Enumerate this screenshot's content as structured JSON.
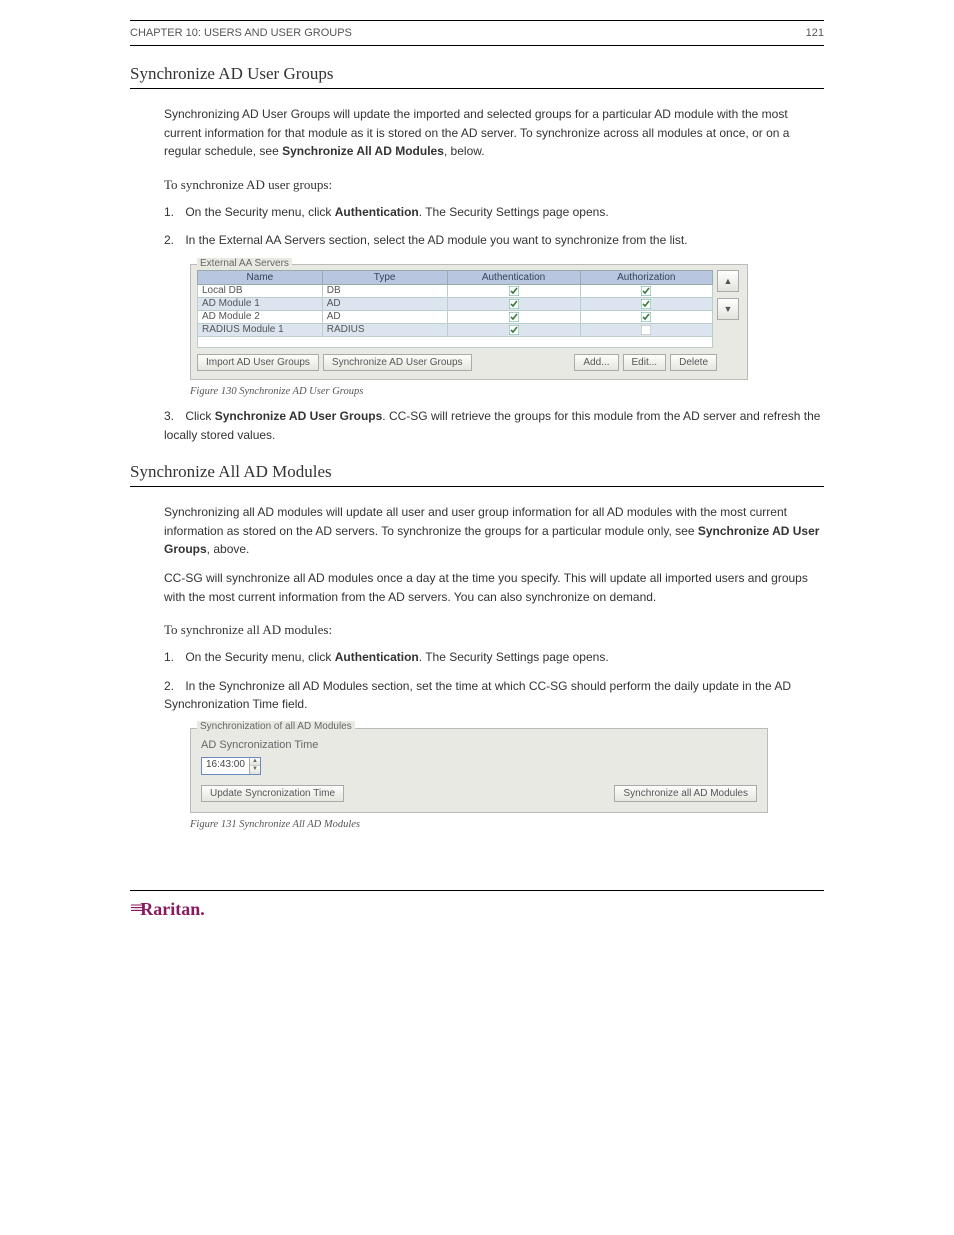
{
  "header": {
    "section": "CHAPTER 10: USERS AND USER GROUPS",
    "page_top": "121"
  },
  "sections": {
    "sync_ug_title": "Synchronize AD User Groups",
    "sync_all_title": "Synchronize All AD Modules"
  },
  "paragraphs": {
    "sync_ug_p1": "Synchronizing AD User Groups will update the imported and selected groups for a particular AD module with the most current information for that module as it is stored on the AD server. To synchronize across all modules at once, or on a regular schedule, see",
    "sync_ug_link": "Synchronize All AD Modules",
    "sync_ug_p1_tail": ", below.",
    "sync_ug_subhead": "To synchronize AD user groups:",
    "sync_ug_step1a": "On the Security menu, click",
    "sync_ug_step1b": "Authentication",
    "sync_ug_step1c": ". The Security Settings page opens.",
    "sync_ug_step2": "In the External AA Servers section, select the AD module you want to synchronize from the list.",
    "sync_ug_step3a": "Click",
    "sync_ug_step3b": "Synchronize AD User Groups",
    "sync_ug_step3c": ". CC-SG will retrieve the groups for this module from the AD server and refresh the locally stored values.",
    "sync_all_p1a": "Synchronizing all AD modules will update all user and user group information for all AD modules with the most current information as stored on the AD servers. To synchronize the groups for a particular module only, see",
    "sync_all_p1b": "Synchronize AD User Groups",
    "sync_all_p1c": ", above.",
    "sync_all_p2": "CC-SG will synchronize all AD modules once a day at the time you specify. This will update all imported users and groups with the most current information from the AD servers. You can also synchronize on demand.",
    "sync_all_subhead": "To synchronize all AD modules:",
    "sync_all_step1a": "On the Security menu, click",
    "sync_all_step1b": "Authentication",
    "sync_all_step1c": ". The Security Settings page opens.",
    "sync_all_step2": "In the Synchronize all AD Modules section, set the time at which CC-SG should perform the daily update in the AD Synchronization Time field."
  },
  "fig130": {
    "legend": "External AA Servers",
    "columns": [
      "Name",
      "Type",
      "Authentication",
      "Authorization"
    ],
    "rows": [
      {
        "name": "Local DB",
        "type": "DB",
        "auth": true,
        "authz": true,
        "stripe": false
      },
      {
        "name": "AD Module 1",
        "type": "AD",
        "auth": true,
        "authz": true,
        "stripe": true
      },
      {
        "name": "AD Module 2",
        "type": "AD",
        "auth": true,
        "authz": true,
        "stripe": false
      },
      {
        "name": "RADIUS Module 1",
        "type": "RADIUS",
        "auth": true,
        "authz": false,
        "stripe": true
      }
    ],
    "buttons": {
      "import": "Import AD User Groups",
      "sync": "Synchronize AD User Groups",
      "add": "Add...",
      "edit": "Edit...",
      "delete": "Delete"
    },
    "caption": "Figure 130 Synchronize AD User Groups"
  },
  "fig131": {
    "legend": "Synchronization of all AD Modules",
    "label": "AD Syncronization Time",
    "time_value": "16:43:00",
    "buttons": {
      "update": "Update Syncronization Time",
      "sync_all": "Synchronize all AD Modules"
    },
    "caption": "Figure 131 Synchronize All AD Modules"
  },
  "footer": {
    "brand": "Raritan.",
    "page": ""
  }
}
